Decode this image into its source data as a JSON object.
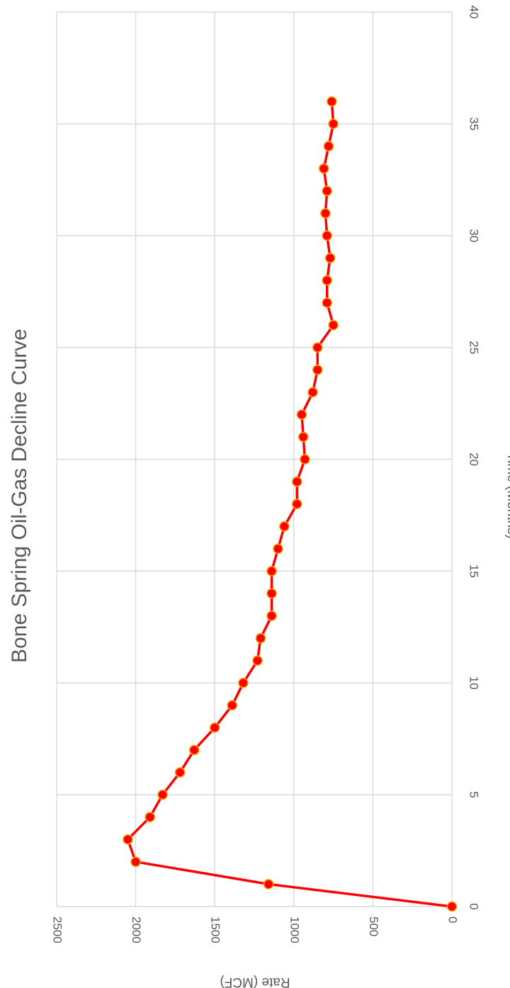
{
  "chart_data": {
    "type": "line",
    "title": "Bone Spring Oil-Gas Decline Curve",
    "xlabel": "Time (Months)",
    "ylabel": "Rate (MCF)",
    "xlim": [
      0,
      40
    ],
    "ylim": [
      0,
      2500
    ],
    "x_ticks": [
      "0",
      "5",
      "10",
      "15",
      "20",
      "25",
      "30",
      "35",
      "40"
    ],
    "y_ticks": [
      "0",
      "500",
      "1000",
      "1500",
      "2000",
      "2500"
    ],
    "grid": true,
    "orientation": "rotated 90° clockwise",
    "colors": {
      "line": "#ff0000",
      "marker_fill": "#ff0000",
      "marker_edge": "#f4a300",
      "text": "#595959",
      "grid": "#d9d9d9"
    },
    "series": [
      {
        "x": [
          0,
          1,
          2,
          3,
          4,
          5,
          6,
          7,
          8,
          9,
          10,
          11,
          12,
          13,
          14,
          15,
          16,
          17,
          18,
          19,
          20,
          21,
          22,
          23,
          24,
          25,
          26,
          27,
          28,
          29,
          30,
          31,
          32,
          33,
          34,
          35,
          36
        ],
        "values": [
          0,
          1160,
          2000,
          2050,
          1910,
          1830,
          1720,
          1630,
          1500,
          1390,
          1320,
          1230,
          1210,
          1140,
          1140,
          1140,
          1100,
          1060,
          980,
          980,
          930,
          940,
          950,
          880,
          850,
          850,
          750,
          790,
          790,
          770,
          790,
          800,
          790,
          810,
          780,
          750,
          760
        ]
      }
    ]
  }
}
